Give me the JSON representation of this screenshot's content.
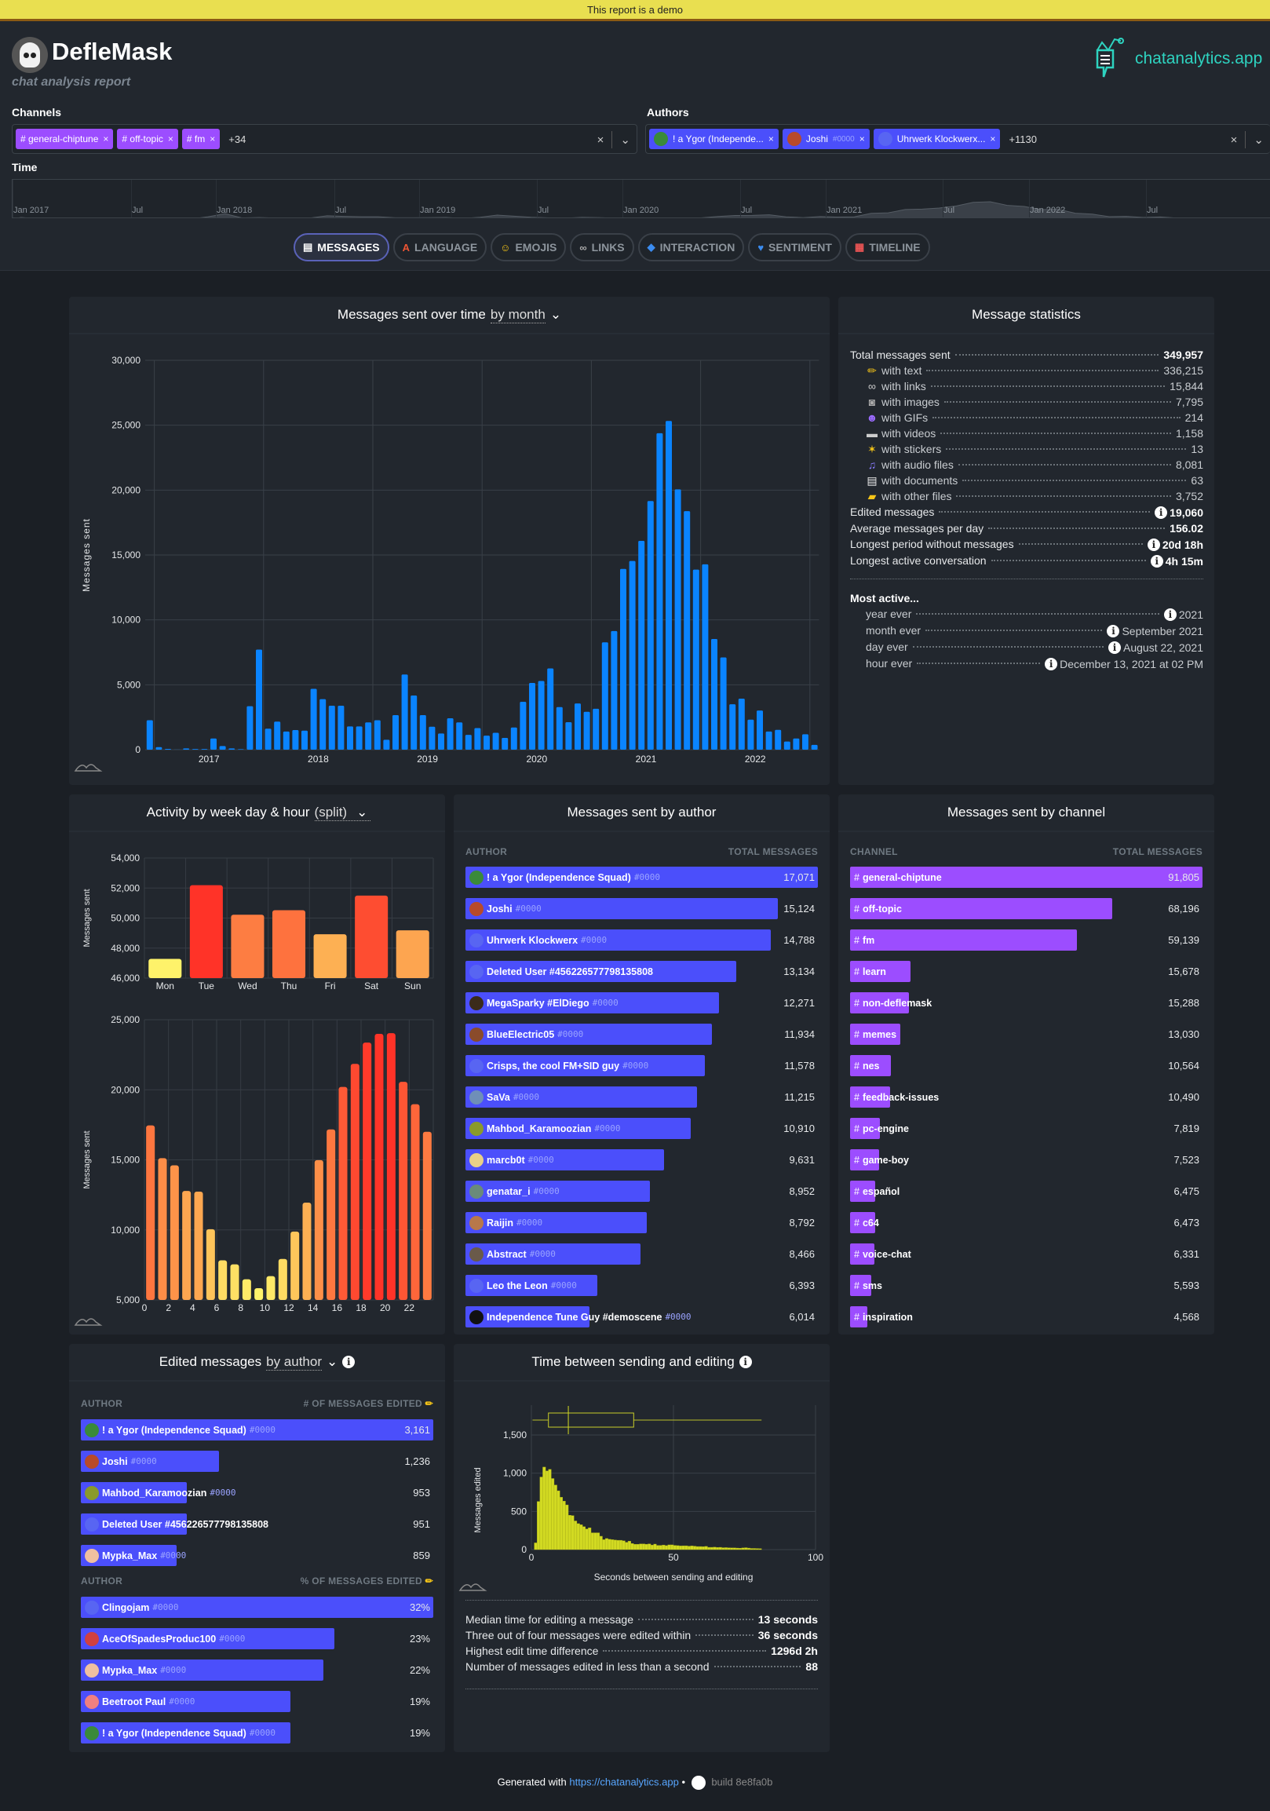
{
  "banner": "This report is a demo",
  "header": {
    "title": "DefleMask",
    "subtitle": "chat analysis report",
    "brand": "chatanalytics.app"
  },
  "filters": {
    "channels_label": "Channels",
    "channels": [
      "general-chiptune",
      "off-topic",
      "fm"
    ],
    "channels_more": "+34",
    "authors_label": "Authors",
    "authors": [
      {
        "name": "! a Ygor (Independe...",
        "tag": ""
      },
      {
        "name": "Joshi",
        "tag": "#0000"
      },
      {
        "name": "Uhrwerk Klockwerx...",
        "tag": ""
      }
    ],
    "authors_more": "+1130",
    "clear_icon": "×",
    "dropdown_icon": "⌄",
    "time_label": "Time",
    "time_ticks": [
      "Jan 2017",
      "Jul",
      "Jan 2018",
      "Jul",
      "Jan 2019",
      "Jul",
      "Jan 2020",
      "Jul",
      "Jan 2021",
      "Jul",
      "Jan 2022",
      "Jul"
    ]
  },
  "tabs": [
    {
      "label": "MESSAGES",
      "icon": "speech-bubble",
      "active": true
    },
    {
      "label": "LANGUAGE",
      "icon": "letter-a"
    },
    {
      "label": "EMOJIS",
      "icon": "smiley"
    },
    {
      "label": "LINKS",
      "icon": "link"
    },
    {
      "label": "INTERACTION",
      "icon": "droplet"
    },
    {
      "label": "SENTIMENT",
      "icon": "heart"
    },
    {
      "label": "TIMELINE",
      "icon": "calendar"
    }
  ],
  "colors": {
    "bar_blue": "#0a84ff",
    "author_bar": "#4b4ffb",
    "channel_bar": "#9c4dff",
    "hist": "#d2da22",
    "heat_low": "#fef26a",
    "heat_mid": "#fd8f48",
    "heat_high": "#ff3328",
    "banner": "#e9df50"
  },
  "time_card": {
    "title": "Messages sent over time",
    "selector": "by month"
  },
  "stats_card": {
    "title": "Message statistics",
    "rows": [
      {
        "label": "Total messages sent",
        "value": "349,957",
        "bold": true
      },
      {
        "label": "with text",
        "value": "336,215",
        "icon": "pencil",
        "sub": true
      },
      {
        "label": "with links",
        "value": "15,844",
        "icon": "link",
        "sub": true
      },
      {
        "label": "with images",
        "value": "7,795",
        "icon": "camera",
        "sub": true
      },
      {
        "label": "with GIFs",
        "value": "214",
        "icon": "alien",
        "sub": true
      },
      {
        "label": "with videos",
        "value": "1,158",
        "icon": "video",
        "sub": true
      },
      {
        "label": "with stickers",
        "value": "13",
        "icon": "party-popper",
        "sub": true
      },
      {
        "label": "with audio files",
        "value": "8,081",
        "icon": "music-note",
        "sub": true
      },
      {
        "label": "with documents",
        "value": "63",
        "icon": "document",
        "sub": true
      },
      {
        "label": "with other files",
        "value": "3,752",
        "icon": "folder",
        "sub": true
      },
      {
        "label": "Edited messages",
        "value": "19,060",
        "bold": true,
        "info": true
      },
      {
        "label": "Average messages per day",
        "value": "156.02",
        "bold": true
      },
      {
        "label": "Longest period without messages",
        "value": "20d 18h",
        "bold": true,
        "info": true
      },
      {
        "label": "Longest active conversation",
        "value": "4h 15m",
        "bold": true,
        "info": true
      }
    ],
    "most_active_title": "Most active...",
    "most_active": [
      {
        "label": "year ever",
        "value": "2021"
      },
      {
        "label": "month ever",
        "value": "September 2021"
      },
      {
        "label": "day ever",
        "value": "August 22, 2021"
      },
      {
        "label": "hour ever",
        "value": "December 13, 2021 at 02 PM"
      }
    ]
  },
  "week_card": {
    "title": "Activity by week day & hour",
    "selector": "(split)"
  },
  "authors_card": {
    "title": "Messages sent by author",
    "col1": "AUTHOR",
    "col2": "TOTAL MESSAGES",
    "rows": [
      {
        "name": "! a Ygor (Independence Squad)",
        "tag": "#0000",
        "value": 17071,
        "display": "17,071",
        "avatar": "#3a8a3a"
      },
      {
        "name": "Joshi",
        "tag": "#0000",
        "value": 15124,
        "display": "15,124",
        "avatar": "#b84a2a"
      },
      {
        "name": "Uhrwerk Klockwerx",
        "tag": "#0000",
        "value": 14788,
        "display": "14,788",
        "avatar": "discord"
      },
      {
        "name": "Deleted User #456226577798135808",
        "tag": "",
        "value": 13134,
        "display": "13,134",
        "avatar": "discord"
      },
      {
        "name": "MegaSparky #ElDiego",
        "tag": "#0000",
        "value": 12271,
        "display": "12,271",
        "avatar": "#3b2b1a"
      },
      {
        "name": "BlueElectric05",
        "tag": "#0000",
        "value": 11934,
        "display": "11,934",
        "avatar": "#8a4b2b"
      },
      {
        "name": "Crisps, the cool FM+SID guy",
        "tag": "#0000",
        "value": 11578,
        "display": "11,578",
        "avatar": "discord"
      },
      {
        "name": "SaVa",
        "tag": "#0000",
        "value": 11215,
        "display": "11,215",
        "avatar": "#6f8fb8"
      },
      {
        "name": "Mahbod_Karamoozian",
        "tag": "#0000",
        "value": 10910,
        "display": "10,910",
        "avatar": "#8a9a2a"
      },
      {
        "name": "marcb0t",
        "tag": "#0000",
        "value": 9631,
        "display": "9,631",
        "avatar": "#e8d088"
      },
      {
        "name": "genatar_i",
        "tag": "#0000",
        "value": 8952,
        "display": "8,952",
        "avatar": "#6a8a7a"
      },
      {
        "name": "Raijin",
        "tag": "#0000",
        "value": 8792,
        "display": "8,792",
        "avatar": "#b8784a"
      },
      {
        "name": "Abstract",
        "tag": "#0000",
        "value": 8466,
        "display": "8,466",
        "avatar": "#6a5a4a"
      },
      {
        "name": "Leo the Leon",
        "tag": "#0000",
        "value": 6393,
        "display": "6,393",
        "avatar": "discord"
      },
      {
        "name": "Independence Tune Guy #demoscene",
        "tag": "#0000",
        "value": 6014,
        "display": "6,014",
        "avatar": "#111111"
      }
    ]
  },
  "channels_card": {
    "title": "Messages sent by channel",
    "col1": "CHANNEL",
    "col2": "TOTAL MESSAGES",
    "rows": [
      {
        "name": "general-chiptune",
        "value": 91805,
        "display": "91,805"
      },
      {
        "name": "off-topic",
        "value": 68196,
        "display": "68,196"
      },
      {
        "name": "fm",
        "value": 59139,
        "display": "59,139"
      },
      {
        "name": "learn",
        "value": 15678,
        "display": "15,678"
      },
      {
        "name": "non-deflemask",
        "value": 15288,
        "display": "15,288"
      },
      {
        "name": "memes",
        "value": 13030,
        "display": "13,030"
      },
      {
        "name": "nes",
        "value": 10564,
        "display": "10,564"
      },
      {
        "name": "feedback-issues",
        "value": 10490,
        "display": "10,490"
      },
      {
        "name": "pc-engine",
        "value": 7819,
        "display": "7,819"
      },
      {
        "name": "game-boy",
        "value": 7523,
        "display": "7,523"
      },
      {
        "name": "español",
        "value": 6475,
        "display": "6,475"
      },
      {
        "name": "c64",
        "value": 6473,
        "display": "6,473"
      },
      {
        "name": "voice-chat",
        "value": 6331,
        "display": "6,331"
      },
      {
        "name": "sms",
        "value": 5593,
        "display": "5,593"
      },
      {
        "name": "inspiration",
        "value": 4568,
        "display": "4,568"
      }
    ]
  },
  "edited_card": {
    "title": "Edited messages",
    "selector": "by author",
    "col1": "AUTHOR",
    "col2": "# OF MESSAGES EDITED",
    "col3": "% OF MESSAGES EDITED",
    "count_rows": [
      {
        "name": "! a Ygor (Independence Squad)",
        "tag": "#0000",
        "value": 3161,
        "display": "3,161",
        "avatar": "#3a8a3a"
      },
      {
        "name": "Joshi",
        "tag": "#0000",
        "value": 1236,
        "display": "1,236",
        "avatar": "#b84a2a"
      },
      {
        "name": "Mahbod_Karamoozian",
        "tag": "#0000",
        "value": 953,
        "display": "953",
        "avatar": "#8a9a2a"
      },
      {
        "name": "Deleted User #456226577798135808",
        "tag": "",
        "value": 951,
        "display": "951",
        "avatar": "discord"
      },
      {
        "name": "Mypka_Max",
        "tag": "#0000",
        "value": 859,
        "display": "859",
        "avatar": "#f0c0a0"
      }
    ],
    "pct_rows": [
      {
        "name": "Clingojam",
        "tag": "#0000",
        "value": 32,
        "display": "32%",
        "avatar": "discord"
      },
      {
        "name": "AceOfSpadesProduc100",
        "tag": "#0000",
        "value": 23,
        "display": "23%",
        "avatar": "#d04040"
      },
      {
        "name": "Mypka_Max",
        "tag": "#0000",
        "value": 22,
        "display": "22%",
        "avatar": "#f0c0a0"
      },
      {
        "name": "Beetroot Paul",
        "tag": "#0000",
        "value": 19,
        "display": "19%",
        "avatar": "#f08080"
      },
      {
        "name": "! a Ygor (Independence Squad)",
        "tag": "#0000",
        "value": 19,
        "display": "19%",
        "avatar": "#3a8a3a"
      }
    ]
  },
  "edittime_card": {
    "title": "Time between sending and editing",
    "stats": [
      {
        "label": "Median time for editing a message",
        "value": "13 seconds"
      },
      {
        "label": "Three out of four messages were edited within",
        "value": "36 seconds"
      },
      {
        "label": "Highest edit time difference",
        "value": "1296d 2h"
      },
      {
        "label": "Number of messages edited in less than a second",
        "value": "88"
      }
    ]
  },
  "footer": {
    "generated": "Generated with",
    "link": "https://chatanalytics.app",
    "sep": "•",
    "build": "build 8e8fa0b"
  },
  "chart_data": [
    {
      "type": "bar",
      "title": "Messages sent over time",
      "ylabel": "Messages sent",
      "ylim": [
        0,
        30000
      ],
      "yticks": [
        "0",
        "5,000",
        "10,000",
        "15,000",
        "20,000",
        "25,000",
        "30,000"
      ],
      "xticks": [
        "2017",
        "2018",
        "2019",
        "2020",
        "2021",
        "2022"
      ],
      "grid": true,
      "x": [
        "2016-12",
        "2017-01",
        "2017-02",
        "2017-03",
        "2017-04",
        "2017-05",
        "2017-06",
        "2017-07",
        "2017-08",
        "2017-09",
        "2017-10",
        "2017-11",
        "2017-12",
        "2018-01",
        "2018-02",
        "2018-03",
        "2018-04",
        "2018-05",
        "2018-06",
        "2018-07",
        "2018-08",
        "2018-09",
        "2018-10",
        "2018-11",
        "2018-12",
        "2019-01",
        "2019-02",
        "2019-03",
        "2019-04",
        "2019-05",
        "2019-06",
        "2019-07",
        "2019-08",
        "2019-09",
        "2019-10",
        "2019-11",
        "2019-12",
        "2020-01",
        "2020-02",
        "2020-03",
        "2020-04",
        "2020-05",
        "2020-06",
        "2020-07",
        "2020-08",
        "2020-09",
        "2020-10",
        "2020-11",
        "2020-12",
        "2021-01",
        "2021-02",
        "2021-03",
        "2021-04",
        "2021-05",
        "2021-06",
        "2021-07",
        "2021-08",
        "2021-09",
        "2021-10",
        "2021-11",
        "2021-12",
        "2022-01",
        "2022-02",
        "2022-03",
        "2022-04",
        "2022-05",
        "2022-06",
        "2022-07",
        "2022-08",
        "2022-09",
        "2022-10",
        "2022-11",
        "2022-12",
        "2023-01"
      ],
      "values": [
        2270,
        200,
        60,
        10,
        100,
        50,
        50,
        860,
        280,
        100,
        40,
        3350,
        7710,
        1620,
        2160,
        1400,
        1510,
        1470,
        4690,
        3890,
        3390,
        3390,
        1790,
        1790,
        2100,
        2270,
        760,
        2660,
        5790,
        4170,
        2660,
        1770,
        1250,
        2420,
        2100,
        1145,
        1660,
        1080,
        1300,
        910,
        1710,
        3690,
        5140,
        5290,
        6260,
        3280,
        2120,
        3560,
        2920,
        3150,
        8270,
        9140,
        13930,
        14540,
        16090,
        19160,
        24380,
        25330,
        20060,
        18380,
        13870,
        14280,
        8530,
        7110,
        3500,
        3930,
        2310,
        3020,
        1400,
        1530,
        630,
        860,
        1190,
        370
      ]
    },
    {
      "type": "bar",
      "ylabel": "Messages sent",
      "ylim": [
        46000,
        54000
      ],
      "yticks": [
        "46,000",
        "48,000",
        "50,000",
        "52,000",
        "54,000"
      ],
      "categories": [
        "Mon",
        "Tue",
        "Wed",
        "Thu",
        "Fri",
        "Sat",
        "Sun"
      ],
      "values": [
        47280,
        52190,
        50220,
        50520,
        48920,
        51500,
        49180
      ]
    },
    {
      "type": "bar",
      "ylabel": "Messages sent",
      "ylim": [
        5000,
        25000
      ],
      "yticks": [
        "5,000",
        "10,000",
        "15,000",
        "20,000",
        "25,000"
      ],
      "xticks": [
        "0",
        "2",
        "4",
        "6",
        "8",
        "10",
        "12",
        "14",
        "16",
        "18",
        "20",
        "22"
      ],
      "categories": [
        0,
        1,
        2,
        3,
        4,
        5,
        6,
        7,
        8,
        9,
        10,
        11,
        12,
        13,
        14,
        15,
        16,
        17,
        18,
        19,
        20,
        21,
        22,
        23
      ],
      "values": [
        17460,
        15120,
        14610,
        12780,
        12730,
        10050,
        7830,
        7540,
        6480,
        5840,
        6700,
        7930,
        9880,
        11950,
        14980,
        17170,
        20200,
        21850,
        23370,
        23990,
        24040,
        20570,
        18970,
        17000
      ]
    },
    {
      "type": "bar",
      "title": "Time between sending and editing",
      "xlabel": "Seconds between sending and editing",
      "ylabel": "Messages edited",
      "xlim": [
        0,
        100
      ],
      "ylim": [
        0,
        1500
      ],
      "xticks": [
        "0",
        "50",
        "100"
      ],
      "yticks": [
        "0",
        "500",
        "1,000",
        "1,500"
      ],
      "bin_width": 1,
      "values": [
        88,
        630,
        950,
        1080,
        1030,
        1050,
        930,
        845,
        770,
        685,
        635,
        585,
        450,
        445,
        375,
        340,
        325,
        300,
        270,
        285,
        220,
        220,
        220,
        175,
        130,
        145,
        135,
        130,
        125,
        122,
        122,
        115,
        95,
        110,
        80,
        70,
        70,
        75,
        75,
        70,
        75,
        60,
        72,
        55,
        55,
        60,
        52,
        62,
        62,
        55,
        52,
        48,
        50,
        50,
        45,
        48,
        45,
        40,
        40,
        38,
        42,
        30,
        30,
        32,
        28,
        30,
        25,
        26,
        24,
        22,
        22,
        20,
        18,
        22,
        25,
        20,
        15,
        15,
        14,
        12
      ],
      "boxplot": {
        "min": 0,
        "q1": 6,
        "median": 13,
        "q3": 36,
        "max": 81
      }
    }
  ]
}
